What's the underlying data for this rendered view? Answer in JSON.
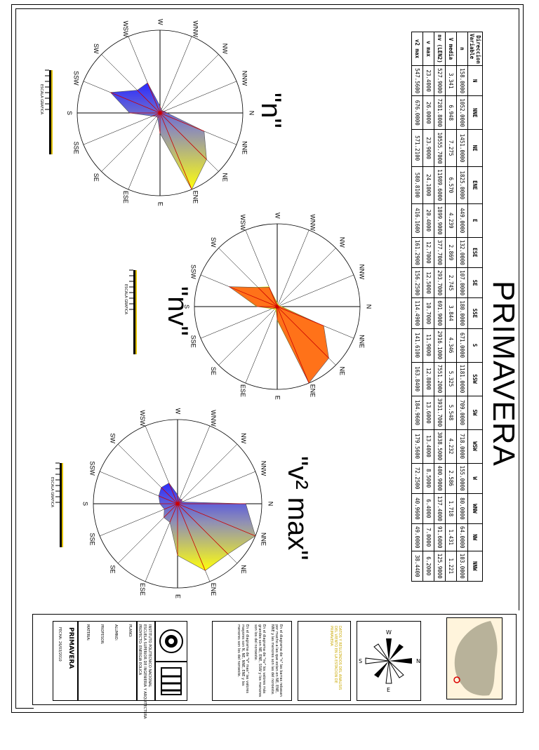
{
  "page_title": "PRIMAVERA",
  "directions": [
    "N",
    "NNE",
    "NE",
    "ENE",
    "E",
    "ESE",
    "SE",
    "SSE",
    "S",
    "SSW",
    "SW",
    "WSW",
    "W",
    "WNW",
    "NW",
    "NNW"
  ],
  "chart_data": [
    {
      "type": "radar",
      "label": "\"n\"",
      "series_name": "n",
      "values": [
        158,
        1052,
        1451,
        1825,
        449,
        132,
        107,
        180,
        671,
        1181,
        709,
        718,
        155,
        80,
        64,
        103
      ]
    },
    {
      "type": "radar",
      "label": "\"nv\"",
      "series_name": "nv (LEN2)",
      "values": [
        527.9,
        7281.8,
        10555.7,
        11989.6,
        1899.9,
        377.7,
        293.7,
        691.9,
        2916.1,
        7551.2,
        3931.7,
        3038.5,
        400.9,
        137.4,
        91.6,
        125.9
      ]
    },
    {
      "type": "radar",
      "label": "\"v² max\"",
      "series_name": "v2 max",
      "values": [
        547.56,
        676,
        571.21,
        580.81,
        416.16,
        161.29,
        156.25,
        114.49,
        141.61,
        163.84,
        184.96,
        179.56,
        72.25,
        40.96,
        49,
        38.44
      ]
    }
  ],
  "table": {
    "corner_top": "Direccion",
    "corner_bottom": "Variable",
    "columns": [
      "N",
      "NNE",
      "NE",
      "ENE",
      "E",
      "ESE",
      "SE",
      "SSE",
      "S",
      "SSW",
      "SW",
      "WSW",
      "W",
      "WNW",
      "NW",
      "NNW"
    ],
    "rows": [
      {
        "name": "n",
        "cells": [
          "158.0000",
          "1052.0000",
          "1451.0000",
          "1825.0000",
          "449.0000",
          "132.0000",
          "107.0000",
          "180.0000",
          "671.0000",
          "1181.0000",
          "709.0000",
          "718.0000",
          "155.0000",
          "80.0000",
          "64.0000",
          "103.0000"
        ]
      },
      {
        "name": "V media",
        "cells": [
          "3.341",
          "6.948",
          "7.275",
          "6.570",
          "4.239",
          "2.869",
          "2.745",
          "3.844",
          "4.346",
          "5.325",
          "5.548",
          "4.232",
          "2.586",
          "1.718",
          "1.431",
          "1.221"
        ]
      },
      {
        "name": "nv (LEN2)",
        "cells": [
          "527.9000",
          "7281.8000",
          "10555.7000",
          "11989.6000",
          "1899.9000",
          "377.7000",
          "293.7000",
          "691.9000",
          "2916.1000",
          "7551.2000",
          "3931.7000",
          "3038.5000",
          "400.9000",
          "137.4000",
          "91.6000",
          "125.9000"
        ]
      },
      {
        "name": "v max",
        "cells": [
          "23.4000",
          "26.0000",
          "23.9000",
          "24.1000",
          "20.4000",
          "12.7000",
          "12.5000",
          "10.7000",
          "11.9000",
          "12.8000",
          "13.6000",
          "13.4000",
          "8.5000",
          "6.4000",
          "7.0000",
          "6.2000"
        ]
      },
      {
        "name": "v2 max",
        "cells": [
          "547.5600",
          "676.0000",
          "571.2100",
          "580.8100",
          "416.1600",
          "161.2900",
          "156.2500",
          "114.4900",
          "141.6100",
          "163.8400",
          "184.9600",
          "179.5600",
          "72.2500",
          "40.9600",
          "49.0000",
          "38.4400"
        ]
      }
    ]
  },
  "scale_label": "ESCALA GRAFICA",
  "legend_texts": [
    "En el diagrama de \"n\" las barras rebasan por mucho a las que estan en NE, ENE, NNE y las menores son las del noroeste.",
    "En el diagrama de \"nv\" los valores más grandes son NE, ENE, SSW y los menores son los del noroeste.",
    "En el diagrama de \"V² max\" las valores mayores son N, NE, NNE, ENE y los menores son los del noroeste."
  ],
  "note_text": "DATOS Y RESULTADOS DEL ANALISIS DEL VIENTO EN LA ESTACION DE PRIMAVERA",
  "institution": [
    "INSTITUTO POLITECNICO NACIONAL",
    "ESCUELA SUPERIOR DE INGENIERIA Y ARQUITECTURA",
    "UNIDAD ZACATENCO"
  ],
  "project_label": "PROYECTO: ENERGIA EOLICA",
  "block_labels": [
    "PLANO:",
    "ALUMNO:",
    "PROFESOR:",
    "MATERIA:"
  ],
  "fecha": "FECHA: 26/03/2010",
  "plano_name": "PRIMAVERA",
  "compass_letters": [
    "N",
    "E",
    "S",
    "W"
  ],
  "colors": {
    "blue": "#2020ff",
    "yellow": "#ffff00",
    "orange": "#ff6a1a",
    "line": "#cc0000"
  }
}
